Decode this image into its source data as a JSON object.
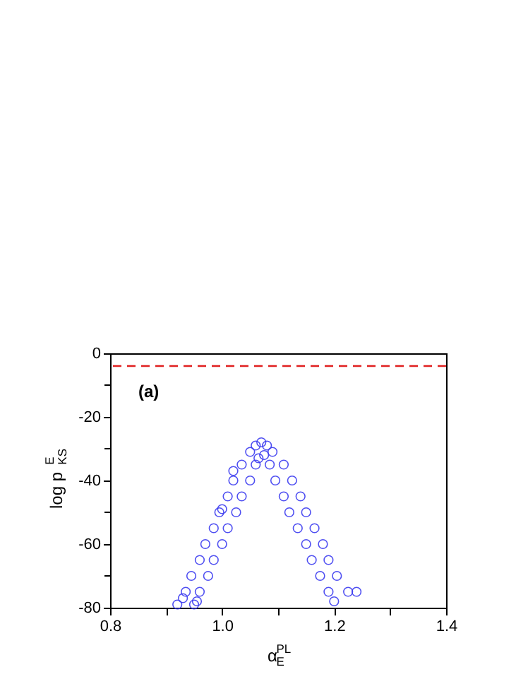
{
  "chart_data": {
    "type": "scatter",
    "xlabel": "α$_{E}$$^{PL}$",
    "ylabel": "log p$^{E}$$_{KS}$",
    "annotations": [
      "(a)"
    ],
    "x": [
      0.92,
      0.95,
      0.93,
      0.955,
      0.935,
      0.96,
      0.945,
      0.975,
      0.96,
      0.985,
      0.97,
      1.0,
      0.985,
      1.01,
      0.995,
      1.025,
      1.01,
      1.035,
      1.02,
      1.05,
      1.035,
      1.06,
      1.05,
      1.06,
      1.07,
      1.08,
      1.09,
      1.065,
      1.075,
      1.085,
      1.11,
      1.095,
      1.125,
      1.11,
      1.14,
      1.12,
      1.15,
      1.135,
      1.165,
      1.15,
      1.18,
      1.16,
      1.19,
      1.175,
      1.205,
      1.19,
      1.225,
      1.2,
      1.24,
      1.02,
      1.0
    ],
    "series": [
      {
        "color": "#3c3cf0",
        "values": [
          -79,
          -79,
          -77,
          -78,
          -75,
          -75,
          -70,
          -70,
          -65,
          -65,
          -60,
          -60,
          -55,
          -55,
          -50,
          -50,
          -45,
          -45,
          -40,
          -40,
          -35,
          -35,
          -31,
          -29,
          -28,
          -29,
          -31,
          -33,
          -32,
          -35,
          -35,
          -40,
          -40,
          -45,
          -45,
          -50,
          -50,
          -55,
          -55,
          -60,
          -60,
          -65,
          -65,
          -70,
          -70,
          -75,
          -75,
          -78,
          -75,
          -37,
          -49
        ]
      }
    ],
    "marker": "circle",
    "xlim": [
      0.8,
      1.4
    ],
    "ylim": [
      -80,
      0
    ],
    "xticks": [
      {
        "value": 0.8,
        "label": "0.8"
      },
      {
        "value": 0.9,
        "label": null
      },
      {
        "value": 1.0,
        "label": "1.0"
      },
      {
        "value": 1.1,
        "label": null
      },
      {
        "value": 1.2,
        "label": "1.2"
      },
      {
        "value": 1.3,
        "label": null
      },
      {
        "value": 1.4,
        "label": "1.4"
      }
    ],
    "yticks": [
      -80,
      {
        "value": -70,
        "label": null
      },
      -60,
      {
        "value": -50,
        "label": null
      },
      -40,
      {
        "value": -30,
        "label": null
      },
      -20,
      {
        "value": -10,
        "label": null
      },
      0
    ],
    "ref_lines": [
      {
        "axis": "y",
        "value": -4,
        "color": "#e02020",
        "line_style": "dashed"
      }
    ],
    "grid": false,
    "legend": false
  }
}
